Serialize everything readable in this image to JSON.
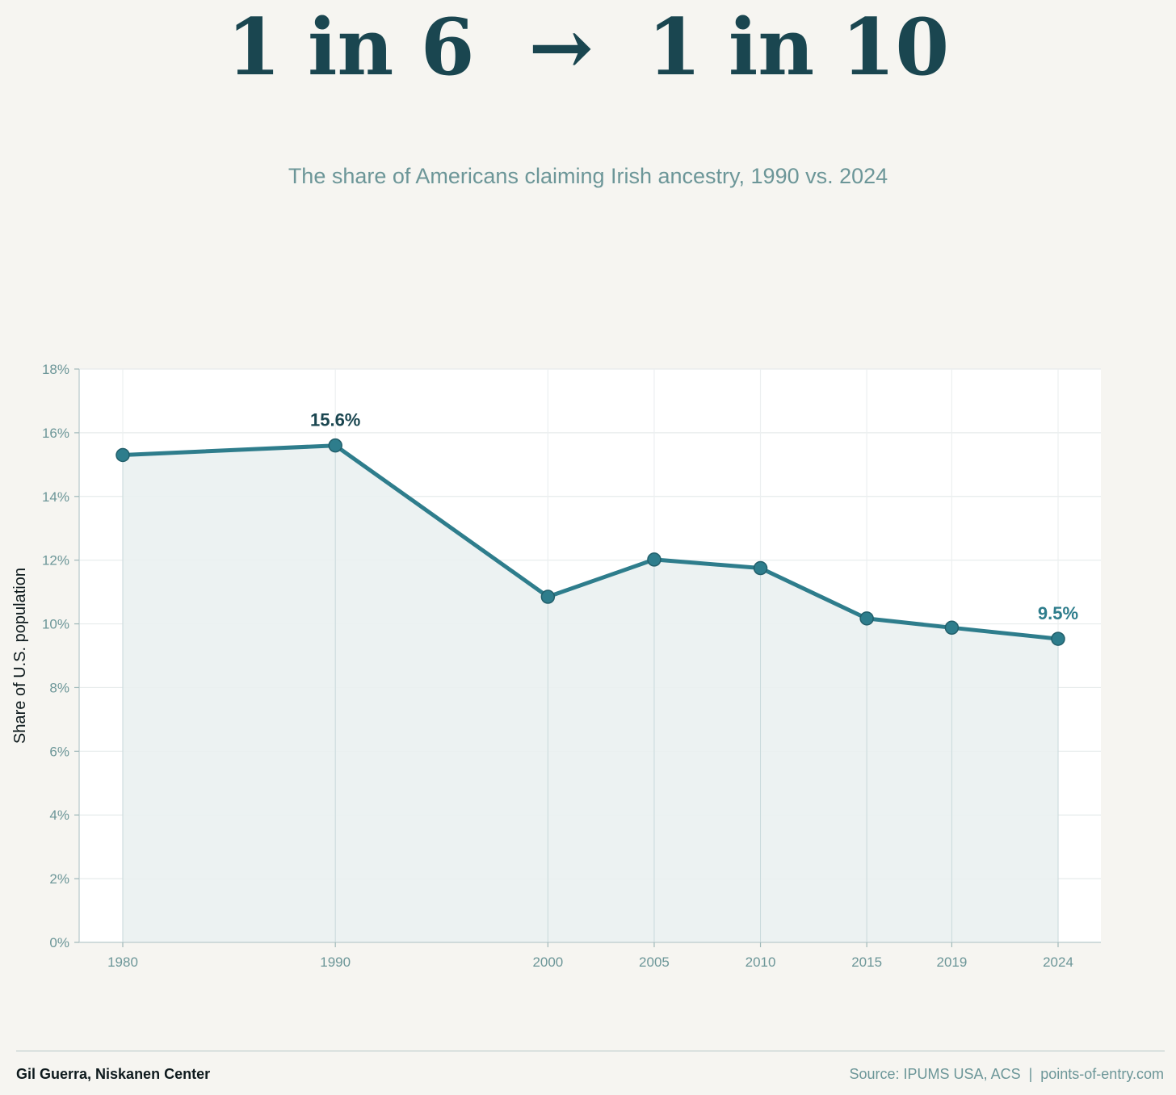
{
  "header": {
    "headline": "1 in 6  →  1 in 10",
    "subtitle": "The share of Americans claiming Irish ancestry, 1990 vs. 2024"
  },
  "chart_data": {
    "type": "line",
    "x": [
      1980,
      1990,
      2000,
      2005,
      2010,
      2015,
      2019,
      2024
    ],
    "values": [
      15.3,
      15.6,
      10.85,
      12.02,
      11.75,
      10.17,
      9.88,
      9.53
    ],
    "ylabel": "Share of U.S. population",
    "xlabel": "",
    "ylim": [
      0,
      18
    ],
    "yticks": [
      0,
      2,
      4,
      6,
      8,
      10,
      12,
      14,
      16,
      18
    ],
    "ytick_labels": [
      "0%",
      "2%",
      "4%",
      "6%",
      "8%",
      "10%",
      "12%",
      "14%",
      "16%",
      "18%"
    ],
    "xtick_labels": [
      "1980",
      "1990",
      "2000",
      "2005",
      "2010",
      "2015",
      "2019",
      "2024"
    ],
    "annotations": [
      {
        "x": 1990,
        "y": 15.6,
        "text": "15.6%"
      },
      {
        "x": 2024,
        "y": 9.53,
        "text": "9.5%"
      }
    ],
    "grid": true,
    "area_fill": true,
    "colors": {
      "line": "#2e7d8c",
      "fill": "#eaf1f1",
      "annotation_peak": "#1a4650",
      "annotation_end": "#2e7d8c",
      "tick_text": "#6c9698"
    }
  },
  "footer": {
    "credit": "Gil Guerra, Niskanen Center",
    "source": "Source: IPUMS USA, ACS  |  points-of-entry.com"
  }
}
